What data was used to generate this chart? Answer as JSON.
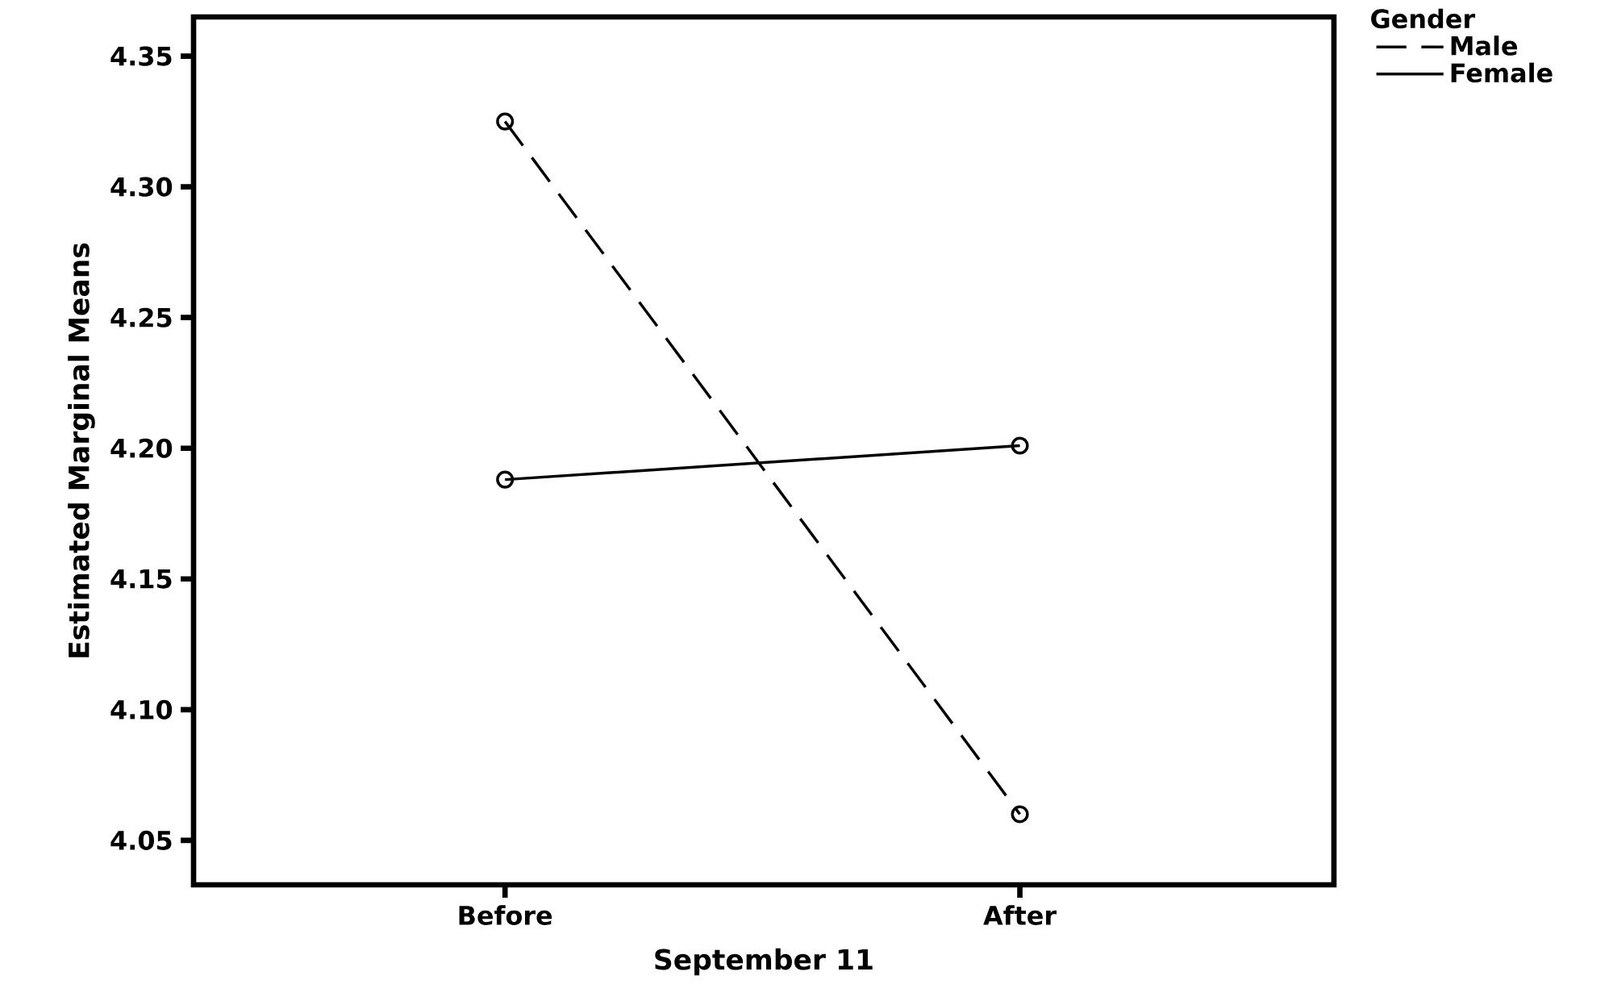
{
  "chart_data": {
    "type": "line",
    "xlabel": "September 11",
    "ylabel": "Estimated Marginal Means",
    "legend_title": "Gender",
    "legend": "top right",
    "categories": [
      "Before",
      "After"
    ],
    "series": [
      {
        "name": "Male",
        "color": "#000000",
        "line_style": "dashed",
        "values": [
          4.325,
          4.06
        ]
      },
      {
        "name": "Female",
        "color": "#000000",
        "line_style": "solid",
        "values": [
          4.188,
          4.201
        ]
      }
    ],
    "marker": "circle",
    "ylim": [
      4.033,
      4.365
    ],
    "yticks": [
      {
        "value": 4.05,
        "label": "4.05"
      },
      {
        "value": 4.1,
        "label": "4.10"
      },
      {
        "value": 4.15,
        "label": "4.15"
      },
      {
        "value": 4.2,
        "label": "4.20"
      },
      {
        "value": 4.25,
        "label": "4.25"
      },
      {
        "value": 4.3,
        "label": "4.30"
      },
      {
        "value": 4.35,
        "label": "4.35"
      }
    ]
  }
}
